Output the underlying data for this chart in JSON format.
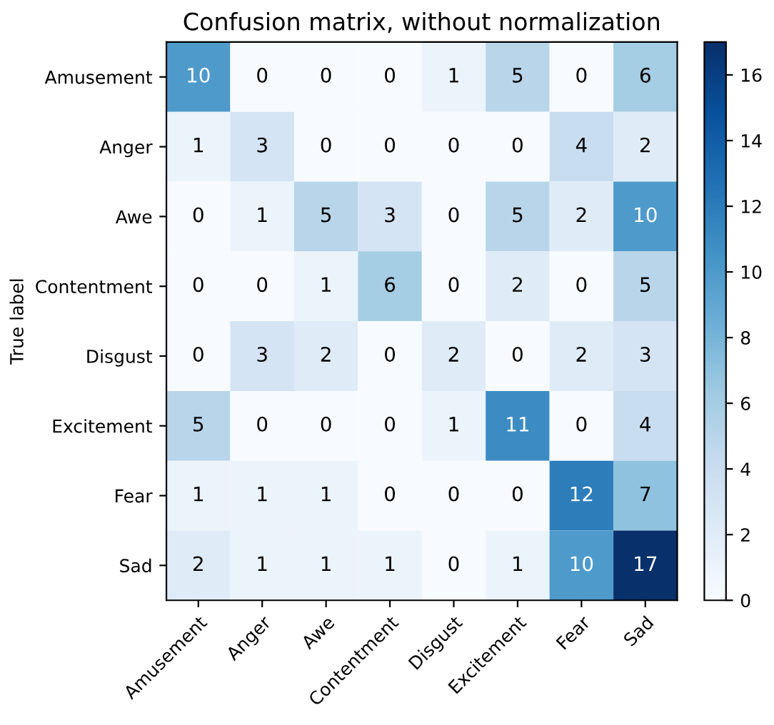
{
  "chart_data": {
    "type": "heatmap",
    "title": "Confusion matrix, without normalization",
    "ylabel": "True label",
    "categories": [
      "Amusement",
      "Anger",
      "Awe",
      "Contentment",
      "Disgust",
      "Excitement",
      "Fear",
      "Sad"
    ],
    "y_categories": [
      "Amusement",
      "Anger",
      "Awe",
      "Contentment",
      "Disgust",
      "Excitement",
      "Fear",
      "Sad"
    ],
    "cells": [
      [
        10,
        0,
        0,
        0,
        1,
        5,
        0,
        6
      ],
      [
        1,
        3,
        0,
        0,
        0,
        0,
        4,
        2
      ],
      [
        0,
        1,
        5,
        3,
        0,
        5,
        2,
        10
      ],
      [
        0,
        0,
        1,
        6,
        0,
        2,
        0,
        5
      ],
      [
        0,
        3,
        2,
        0,
        2,
        0,
        2,
        3
      ],
      [
        5,
        0,
        0,
        0,
        1,
        11,
        0,
        4
      ],
      [
        1,
        1,
        1,
        0,
        0,
        0,
        12,
        7
      ],
      [
        2,
        1,
        1,
        1,
        0,
        1,
        10,
        17
      ]
    ],
    "clim": [
      0,
      17
    ],
    "cticks": [
      0,
      2,
      4,
      6,
      8,
      10,
      12,
      14,
      16
    ],
    "data_labels": true
  }
}
